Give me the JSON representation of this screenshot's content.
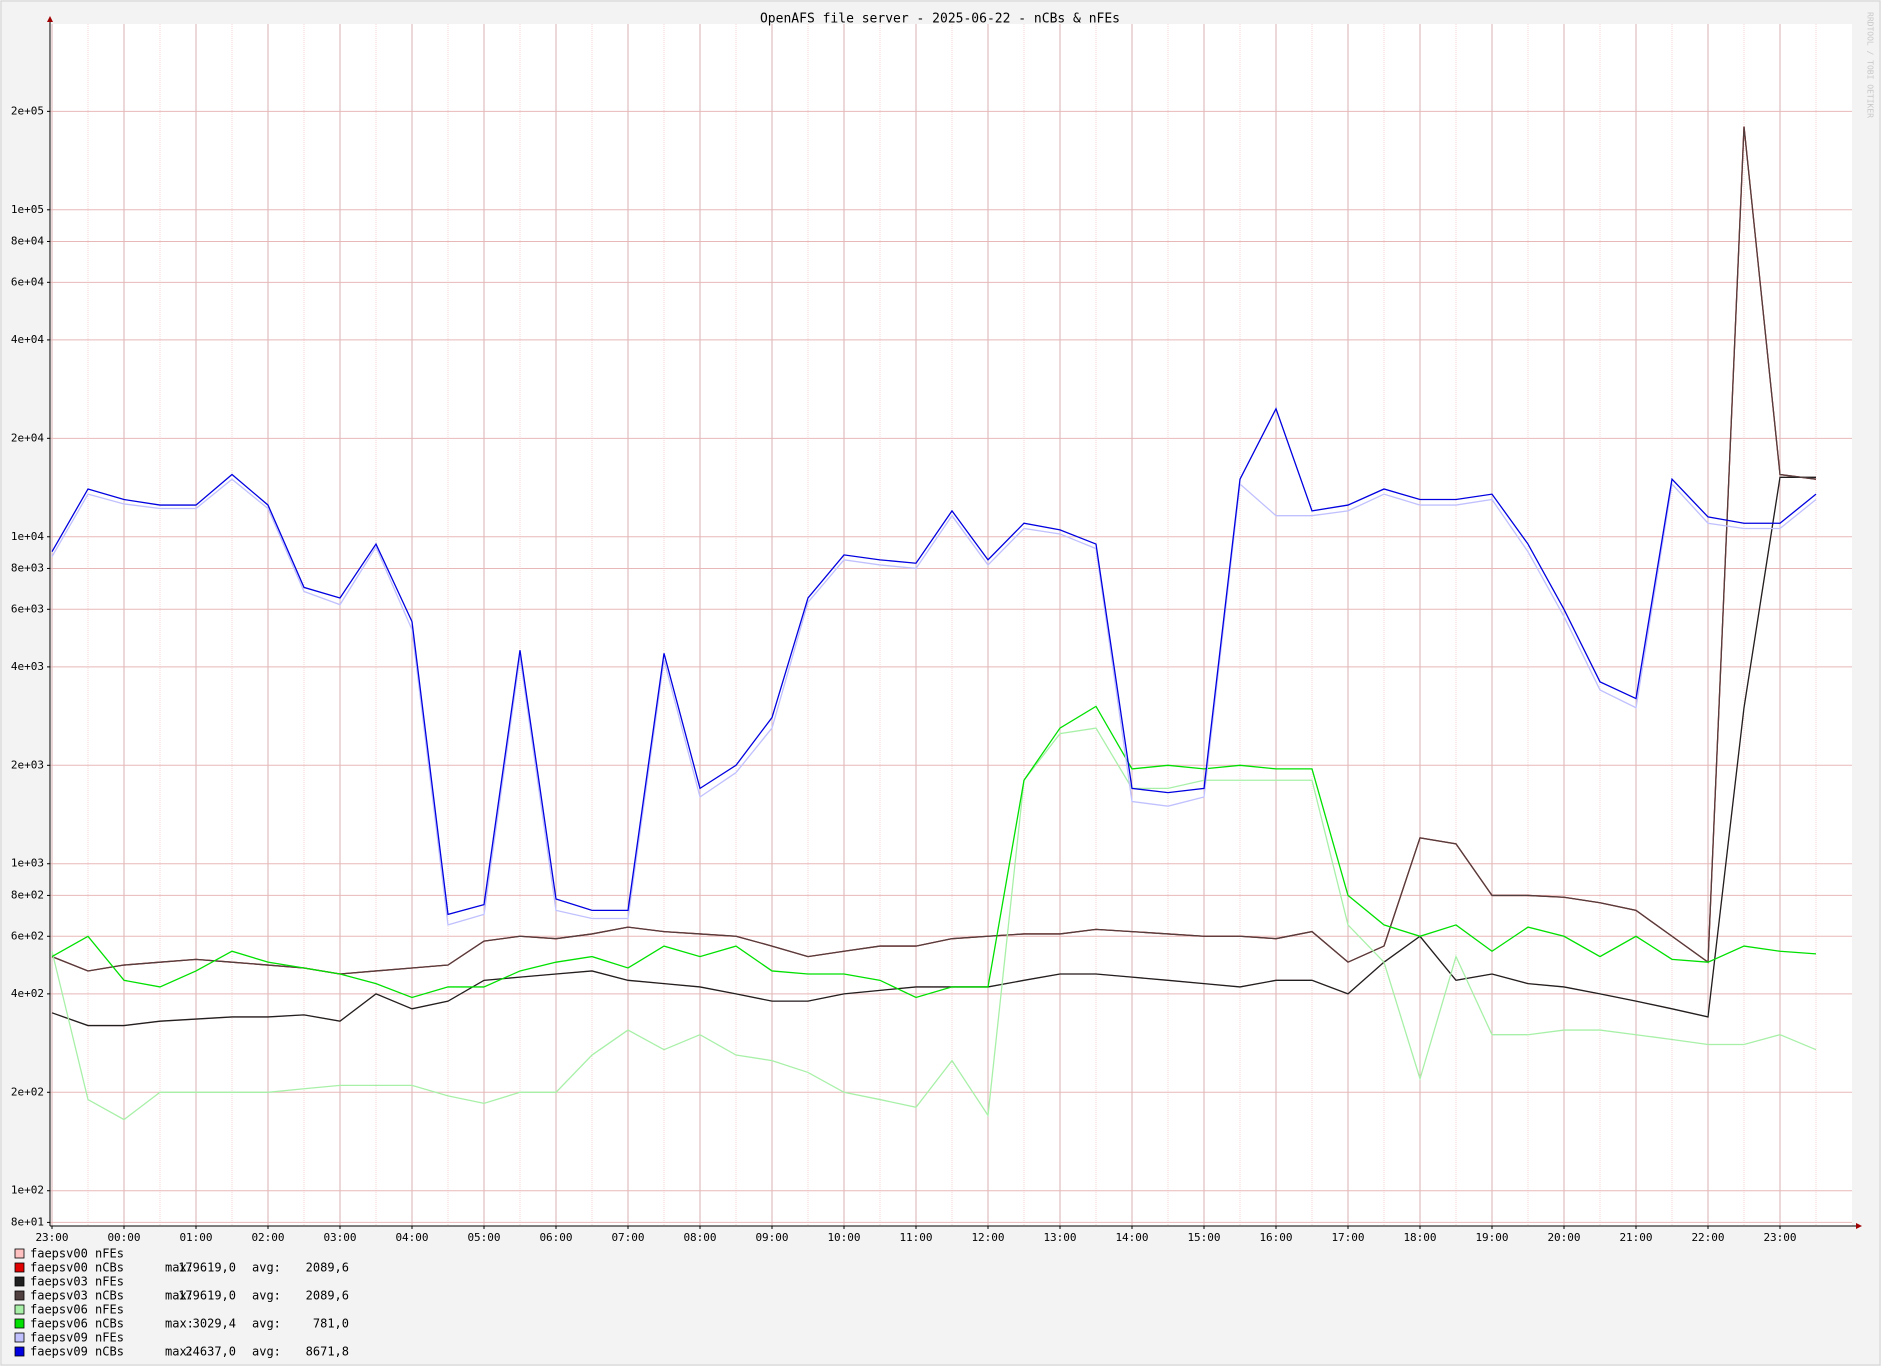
{
  "chart_data": {
    "type": "line",
    "title": "OpenAFS file server - 2025-06-22 - nCBs & nFEs",
    "watermark": "RRDTOOL / TOBI OETIKER",
    "log_scale": true,
    "grid": true,
    "max_text": "max:",
    "avg_text": "avg:",
    "categories": [
      "23:00",
      "23:30",
      "00:00",
      "00:30",
      "01:00",
      "01:30",
      "02:00",
      "02:30",
      "03:00",
      "03:30",
      "04:00",
      "04:30",
      "05:00",
      "05:30",
      "06:00",
      "06:30",
      "07:00",
      "07:30",
      "08:00",
      "08:30",
      "09:00",
      "09:30",
      "10:00",
      "10:30",
      "11:00",
      "11:30",
      "12:00",
      "12:30",
      "13:00",
      "13:30",
      "14:00",
      "14:30",
      "15:00",
      "15:30",
      "16:00",
      "16:30",
      "17:00",
      "17:30",
      "18:00",
      "18:30",
      "19:00",
      "19:30",
      "20:00",
      "20:30",
      "21:00",
      "21:30",
      "22:00",
      "22:30",
      "23:00",
      "23:30"
    ],
    "ylim": [
      78,
      370000
    ],
    "yticks": [
      {
        "value": 80,
        "label": "8e+01"
      },
      {
        "value": 100,
        "label": "1e+02"
      },
      {
        "value": 200,
        "label": "2e+02"
      },
      {
        "value": 400,
        "label": "4e+02"
      },
      {
        "value": 600,
        "label": "6e+02"
      },
      {
        "value": 800,
        "label": "8e+02"
      },
      {
        "value": 1000,
        "label": "1e+03"
      },
      {
        "value": 2000,
        "label": "2e+03"
      },
      {
        "value": 4000,
        "label": "4e+03"
      },
      {
        "value": 6000,
        "label": "6e+03"
      },
      {
        "value": 8000,
        "label": "8e+03"
      },
      {
        "value": 10000,
        "label": "1e+04"
      },
      {
        "value": 20000,
        "label": "2e+04"
      },
      {
        "value": 40000,
        "label": "4e+04"
      },
      {
        "value": 60000,
        "label": "6e+04"
      },
      {
        "value": 80000,
        "label": "8e+04"
      },
      {
        "value": 100000,
        "label": "1e+05"
      },
      {
        "value": 200000,
        "label": "2e+05"
      }
    ],
    "series": [
      {
        "name": "faepsv00 nFEs",
        "color": "#ffc0c0",
        "values": [
          350,
          320,
          320,
          330,
          335,
          340,
          340,
          345,
          330,
          400,
          360,
          380,
          440,
          450,
          460,
          470,
          440,
          430,
          420,
          400,
          380,
          380,
          400,
          410,
          420,
          420,
          420,
          440,
          460,
          460,
          450,
          440,
          430,
          420,
          440,
          440,
          400,
          500,
          600,
          440,
          460,
          430,
          420,
          400,
          380,
          360,
          340,
          3000,
          15200,
          15200
        ]
      },
      {
        "name": "faepsv00 nCBs",
        "color": "#e00000",
        "max": "179619,0",
        "avg": "2089,6",
        "values": [
          520,
          470,
          490,
          500,
          510,
          500,
          490,
          480,
          460,
          470,
          480,
          490,
          580,
          600,
          590,
          610,
          640,
          620,
          610,
          600,
          560,
          520,
          540,
          560,
          560,
          590,
          600,
          610,
          610,
          630,
          620,
          610,
          600,
          600,
          590,
          620,
          500,
          560,
          1200,
          1150,
          800,
          800,
          790,
          760,
          720,
          600,
          500,
          179619,
          15500,
          15000
        ]
      },
      {
        "name": "faepsv03 nFEs",
        "color": "#202020",
        "values": [
          350,
          320,
          320,
          330,
          335,
          340,
          340,
          345,
          330,
          400,
          360,
          380,
          440,
          450,
          460,
          470,
          440,
          430,
          420,
          400,
          380,
          380,
          400,
          410,
          420,
          420,
          420,
          440,
          460,
          460,
          450,
          440,
          430,
          420,
          440,
          440,
          400,
          500,
          600,
          440,
          460,
          430,
          420,
          400,
          380,
          360,
          340,
          3000,
          15200,
          15200
        ]
      },
      {
        "name": "faepsv03 nCBs",
        "color": "#504040",
        "max": "179619,0",
        "avg": "2089,6",
        "values": [
          520,
          470,
          490,
          500,
          510,
          500,
          490,
          480,
          460,
          470,
          480,
          490,
          580,
          600,
          590,
          610,
          640,
          620,
          610,
          600,
          560,
          520,
          540,
          560,
          560,
          590,
          600,
          610,
          610,
          630,
          620,
          610,
          600,
          600,
          590,
          620,
          500,
          560,
          1200,
          1150,
          800,
          800,
          790,
          760,
          720,
          600,
          500,
          179619,
          15500,
          15000
        ]
      },
      {
        "name": "faepsv06 nFEs",
        "color": "#a8f0a8",
        "values": [
          540,
          190,
          165,
          200,
          200,
          200,
          200,
          205,
          210,
          210,
          210,
          195,
          185,
          200,
          200,
          260,
          310,
          270,
          300,
          260,
          250,
          230,
          200,
          190,
          180,
          250,
          170,
          1800,
          2500,
          2600,
          1700,
          1700,
          1800,
          1800,
          1800,
          1800,
          650,
          500,
          220,
          520,
          300,
          300,
          310,
          310,
          300,
          290,
          280,
          280,
          300,
          270
        ]
      },
      {
        "name": "faepsv06 nCBs",
        "color": "#00e000",
        "max": "3029,4",
        "avg": "781,0",
        "values": [
          520,
          600,
          440,
          420,
          470,
          540,
          500,
          480,
          460,
          430,
          390,
          420,
          420,
          470,
          500,
          520,
          480,
          560,
          520,
          560,
          470,
          460,
          460,
          440,
          390,
          420,
          420,
          1800,
          2600,
          3029.4,
          1950,
          2000,
          1950,
          2000,
          1950,
          1950,
          800,
          650,
          600,
          650,
          540,
          640,
          600,
          520,
          600,
          510,
          500,
          560,
          540,
          530
        ]
      },
      {
        "name": "faepsv09 nFEs",
        "color": "#c0c0ff",
        "values": [
          8700,
          13500,
          12600,
          12200,
          12200,
          15000,
          12200,
          6800,
          6200,
          9300,
          5200,
          650,
          700,
          4300,
          720,
          680,
          680,
          4200,
          1600,
          1900,
          2600,
          6300,
          8500,
          8200,
          8000,
          11600,
          8200,
          10600,
          10200,
          9200,
          1550,
          1500,
          1600,
          14500,
          11600,
          11600,
          12000,
          13500,
          12500,
          12500,
          13000,
          9000,
          5700,
          3400,
          3000,
          14500,
          11000,
          10600,
          10600,
          13000
        ]
      },
      {
        "name": "faepsv09 nCBs",
        "color": "#0000e0",
        "max": "24637,0",
        "avg": "8671,8",
        "values": [
          9000,
          14000,
          13000,
          12500,
          12500,
          15500,
          12500,
          7000,
          6500,
          9500,
          5500,
          700,
          750,
          4500,
          780,
          720,
          720,
          4400,
          1700,
          2000,
          2800,
          6500,
          8800,
          8500,
          8300,
          12000,
          8500,
          11000,
          10500,
          9500,
          1700,
          1650,
          1700,
          15000,
          24637,
          12000,
          12500,
          14000,
          13000,
          13000,
          13500,
          9500,
          6000,
          3600,
          3200,
          15000,
          11500,
          11000,
          11000,
          13500
        ]
      }
    ]
  }
}
